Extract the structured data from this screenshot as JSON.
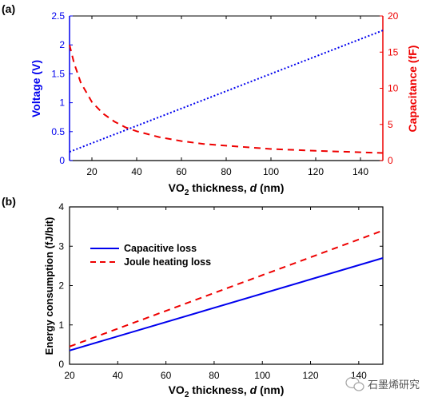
{
  "panel_a": {
    "label": "(a)",
    "xlabel_pre": "VO",
    "xlabel_sub": "2",
    "xlabel_mid": " thickness, ",
    "xlabel_var": "d",
    "xlabel_post": " (nm)",
    "ylabel_left": "Voltage (V)",
    "ylabel_right": "Capacitance (fF)"
  },
  "panel_b": {
    "label": "(b)",
    "xlabel_pre": "VO",
    "xlabel_sub": "2",
    "xlabel_mid": " thickness, ",
    "xlabel_var": "d",
    "xlabel_post": " (nm)",
    "ylabel": "Energy consumption (fJ/bit)",
    "legend": [
      "Capacitive loss",
      "Joule heating loss"
    ]
  },
  "watermark": "石墨烯研究",
  "colors": {
    "blue": "#0000ee",
    "red": "#ee0000",
    "axis": "#000000"
  },
  "chart_data": [
    {
      "type": "line",
      "xlim": [
        10,
        150
      ],
      "xticks": [
        20,
        40,
        60,
        80,
        100,
        120,
        140
      ],
      "ylim_left": [
        0,
        2.5
      ],
      "yticks_left": [
        0,
        0.5,
        1,
        1.5,
        2,
        2.5
      ],
      "ylim_right": [
        0,
        20
      ],
      "yticks_right": [
        0,
        5,
        10,
        15,
        20
      ],
      "series": [
        {
          "axis": "left",
          "style": "dotted",
          "color": "#0000ee",
          "x": [
            10,
            150
          ],
          "y": [
            0.15,
            2.25
          ]
        },
        {
          "axis": "right",
          "style": "dashed",
          "color": "#ee0000",
          "x": [
            10,
            12,
            15,
            20,
            25,
            30,
            35,
            40,
            50,
            60,
            70,
            80,
            100,
            120,
            140,
            150
          ],
          "y": [
            16,
            13.5,
            10.8,
            8.1,
            6.5,
            5.4,
            4.6,
            4.05,
            3.25,
            2.7,
            2.3,
            2.05,
            1.6,
            1.35,
            1.15,
            1.05
          ]
        }
      ]
    },
    {
      "type": "line",
      "xlim": [
        20,
        150
      ],
      "xticks": [
        20,
        40,
        60,
        80,
        100,
        120,
        140
      ],
      "ylim": [
        0,
        4
      ],
      "yticks": [
        0,
        1,
        2,
        3,
        4
      ],
      "legend_position": "upper-left",
      "series": [
        {
          "name": "Capacitive loss",
          "style": "solid",
          "color": "#0000ee",
          "x": [
            20,
            150
          ],
          "y": [
            0.35,
            2.7
          ]
        },
        {
          "name": "Joule heating loss",
          "style": "dashed",
          "color": "#ee0000",
          "x": [
            20,
            150
          ],
          "y": [
            0.45,
            3.4
          ]
        }
      ]
    }
  ]
}
